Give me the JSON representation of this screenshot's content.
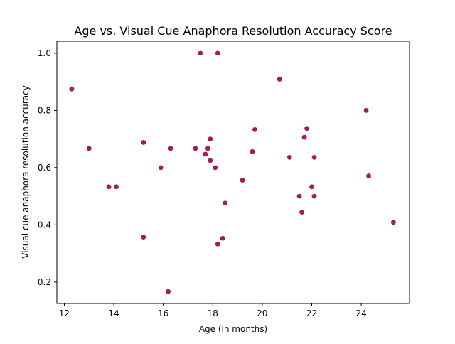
{
  "chart_data": {
    "type": "scatter",
    "title": "Age vs. Visual Cue Anaphora Resolution Accuracy Score",
    "xlabel": "Age (in months)",
    "ylabel": "Visual cue anaphora resolution accuracy",
    "xlim": [
      11.7,
      25.95
    ],
    "ylim": [
      0.125,
      1.042
    ],
    "xticks": [
      12,
      14,
      16,
      18,
      20,
      22,
      24
    ],
    "yticks": [
      0.2,
      0.4,
      0.6,
      0.8,
      1.0
    ],
    "xtick_labels": [
      "12",
      "14",
      "16",
      "18",
      "20",
      "22",
      "24"
    ],
    "ytick_labels": [
      "0.2",
      "0.4",
      "0.6",
      "0.8",
      "1.0"
    ],
    "grid": false,
    "point_color": "#a31a60",
    "points": [
      {
        "x": 12.3,
        "y": 0.875
      },
      {
        "x": 13.0,
        "y": 0.667
      },
      {
        "x": 13.8,
        "y": 0.533
      },
      {
        "x": 14.1,
        "y": 0.533
      },
      {
        "x": 15.2,
        "y": 0.688
      },
      {
        "x": 15.2,
        "y": 0.357
      },
      {
        "x": 15.9,
        "y": 0.6
      },
      {
        "x": 16.2,
        "y": 0.167
      },
      {
        "x": 16.3,
        "y": 0.667
      },
      {
        "x": 17.3,
        "y": 0.667
      },
      {
        "x": 17.5,
        "y": 1.0
      },
      {
        "x": 17.7,
        "y": 0.647
      },
      {
        "x": 17.8,
        "y": 0.667
      },
      {
        "x": 17.9,
        "y": 0.7
      },
      {
        "x": 17.9,
        "y": 0.625
      },
      {
        "x": 18.1,
        "y": 0.6
      },
      {
        "x": 18.2,
        "y": 1.0
      },
      {
        "x": 18.2,
        "y": 0.333
      },
      {
        "x": 18.4,
        "y": 0.353
      },
      {
        "x": 18.5,
        "y": 0.476
      },
      {
        "x": 19.2,
        "y": 0.556
      },
      {
        "x": 19.6,
        "y": 0.656
      },
      {
        "x": 19.7,
        "y": 0.733
      },
      {
        "x": 20.7,
        "y": 0.909
      },
      {
        "x": 21.1,
        "y": 0.636
      },
      {
        "x": 21.5,
        "y": 0.5
      },
      {
        "x": 21.6,
        "y": 0.444
      },
      {
        "x": 21.7,
        "y": 0.706
      },
      {
        "x": 21.8,
        "y": 0.737
      },
      {
        "x": 22.0,
        "y": 0.533
      },
      {
        "x": 22.1,
        "y": 0.636
      },
      {
        "x": 22.1,
        "y": 0.5
      },
      {
        "x": 24.2,
        "y": 0.8
      },
      {
        "x": 24.3,
        "y": 0.571
      },
      {
        "x": 25.3,
        "y": 0.409
      }
    ]
  }
}
